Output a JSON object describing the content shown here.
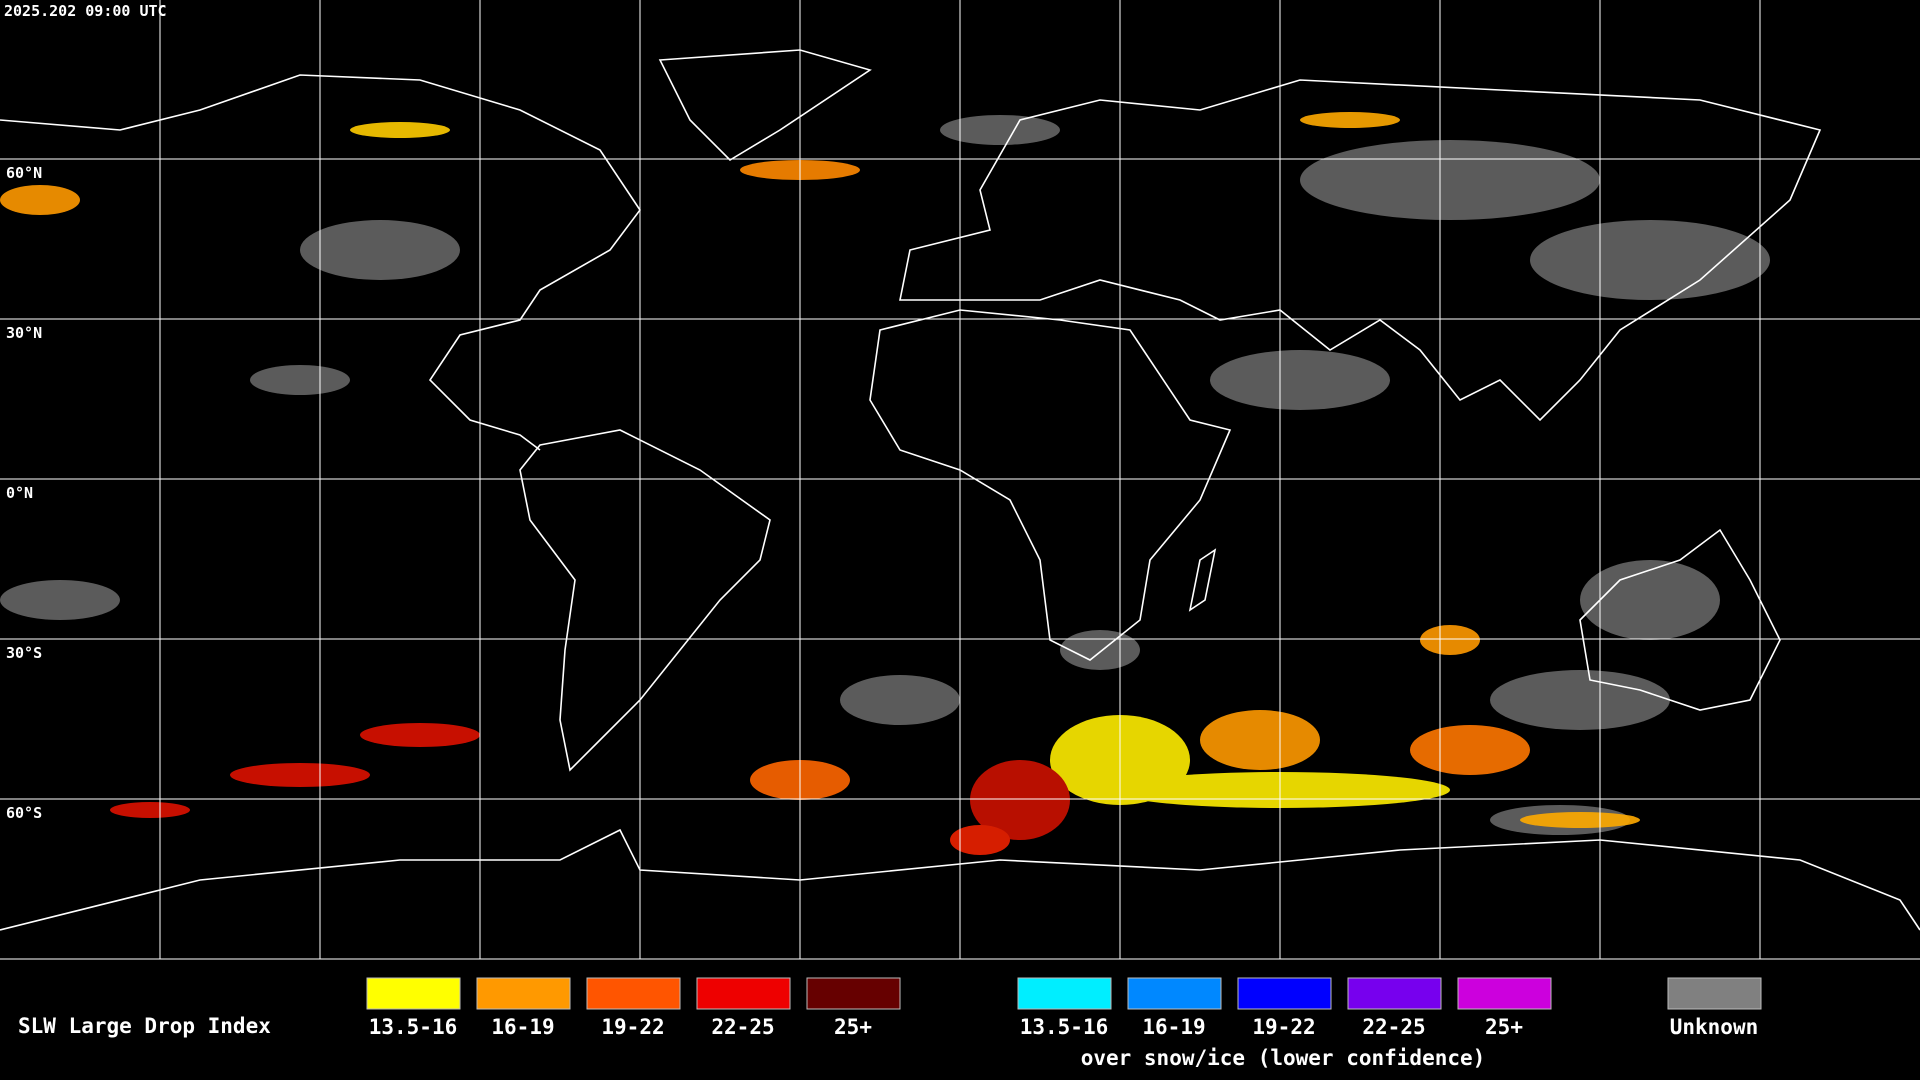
{
  "header": {
    "timestamp": "2025.202 09:00 UTC"
  },
  "map": {
    "latitude_labels": [
      "60°N",
      "30°N",
      "0°N",
      "30°S",
      "60°S"
    ]
  },
  "legend": {
    "title": "SLW Large Drop Index",
    "groups": [
      {
        "items": [
          {
            "label": "13.5-16",
            "color": "#ffff00"
          },
          {
            "label": "16-19",
            "color": "#ff9900"
          },
          {
            "label": "19-22",
            "color": "#ff5500"
          },
          {
            "label": "22-25",
            "color": "#ee0000"
          },
          {
            "label": "25+",
            "color": "#660000"
          }
        ]
      },
      {
        "items": [
          {
            "label": "13.5-16",
            "color": "#00eeff"
          },
          {
            "label": "16-19",
            "color": "#0088ff"
          },
          {
            "label": "19-22",
            "color": "#0000ff"
          },
          {
            "label": "22-25",
            "color": "#7700ee"
          },
          {
            "label": "25+",
            "color": "#cc00dd"
          }
        ],
        "caption": "over snow/ice (lower confidence)"
      },
      {
        "items": [
          {
            "label": "Unknown",
            "color": "#808080"
          }
        ]
      }
    ]
  }
}
